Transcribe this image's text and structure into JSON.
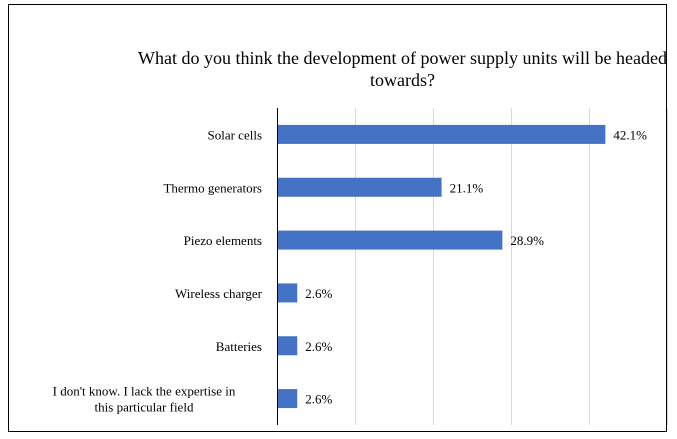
{
  "chart_data": {
    "type": "bar",
    "orientation": "horizontal",
    "title": "What do you think the development of power supply units will be headed towards?",
    "categories": [
      "Solar cells",
      "Thermo generators",
      "Piezo elements",
      "Wireless charger",
      "Batteries",
      "I don't know. I lack the expertise in this particular field"
    ],
    "category_lines": [
      [
        "Solar cells"
      ],
      [
        "Thermo generators"
      ],
      [
        "Piezo elements"
      ],
      [
        "Wireless charger"
      ],
      [
        "Batteries"
      ],
      [
        "I don't know. I lack the expertise in",
        "this particular field"
      ]
    ],
    "values": [
      42.1,
      21.1,
      28.9,
      2.6,
      2.6,
      2.6
    ],
    "value_labels": [
      "42.1%",
      "21.1%",
      "28.9%",
      "2.6%",
      "2.6%",
      "2.6%"
    ],
    "xlim": [
      0,
      50
    ],
    "grid": true,
    "bar_color": "#4472c4",
    "grid_color": "#d9d9d9"
  }
}
